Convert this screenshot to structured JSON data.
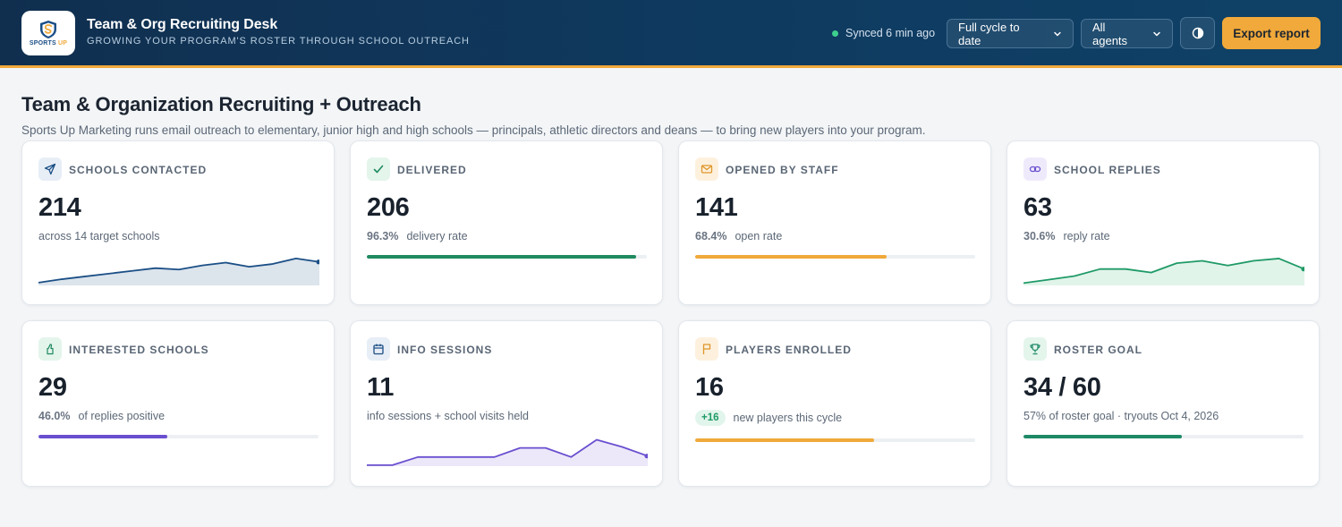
{
  "header": {
    "logo_text_main": "SPORTS",
    "logo_text_accent": "UP",
    "title": "Team & Org Recruiting Desk",
    "subtitle": "GROWING YOUR PROGRAM'S ROSTER THROUGH SCHOOL OUTREACH",
    "sync_status": "Synced 6 min ago",
    "cycle_filter": "Full cycle to date",
    "agent_filter": "All agents",
    "export_label": "Export report"
  },
  "page": {
    "title": "Team & Organization Recruiting + Outreach",
    "description": "Sports Up Marketing runs email outreach to elementary, junior high and high schools — principals, athletic directors and deans — to bring new players into your program."
  },
  "cards": [
    {
      "label": "SCHOOLS CONTACTED",
      "value": "214",
      "sub_text": "across 14 target schools",
      "icon": "send-icon",
      "color": "#1b4f86"
    },
    {
      "label": "DELIVERED",
      "value": "206",
      "rate": "96.3%",
      "sub_text": "delivery rate",
      "progress": 0.963,
      "icon": "check-icon",
      "color": "#1f8a5f"
    },
    {
      "label": "OPENED BY STAFF",
      "value": "141",
      "rate": "68.4%",
      "sub_text": "open rate",
      "progress": 0.684,
      "icon": "mail-icon",
      "color": "#f0a93a"
    },
    {
      "label": "SCHOOL REPLIES",
      "value": "63",
      "rate": "30.6%",
      "sub_text": "reply rate",
      "icon": "link-icon",
      "color": "#1f9a66"
    },
    {
      "label": "INTERESTED SCHOOLS",
      "value": "29",
      "rate": "46.0%",
      "sub_text": "of replies positive",
      "progress": 0.46,
      "icon": "thumbs-up-icon",
      "color": "#6a4fd0"
    },
    {
      "label": "INFO SESSIONS",
      "value": "11",
      "sub_text": "info sessions + school visits held",
      "icon": "calendar-icon",
      "color": "#6a4fd0"
    },
    {
      "label": "PLAYERS ENROLLED",
      "value": "16",
      "badge": "+16",
      "sub_text": "new players this cycle",
      "progress": 0.64,
      "icon": "flag-icon",
      "color": "#f0a93a"
    },
    {
      "label": "ROSTER GOAL",
      "value": "34 / 60",
      "sub_text": "57% of roster goal · tryouts Oct 4, 2026",
      "progress": 0.567,
      "icon": "trophy-icon",
      "color": "#1e8a67"
    }
  ],
  "sparklines": {
    "schools_contacted": [
      2,
      4.5,
      6.5,
      8.5,
      10.5,
      12.5,
      11.5,
      14.5,
      16.5,
      13.5,
      15.5,
      19.5,
      17
    ],
    "school_replies": [
      2,
      5,
      8,
      14,
      14,
      11,
      19,
      21,
      17,
      21,
      23,
      14
    ],
    "info_sessions": [
      1,
      1,
      9,
      9,
      9,
      9,
      18,
      18,
      9,
      26,
      19,
      10
    ]
  }
}
